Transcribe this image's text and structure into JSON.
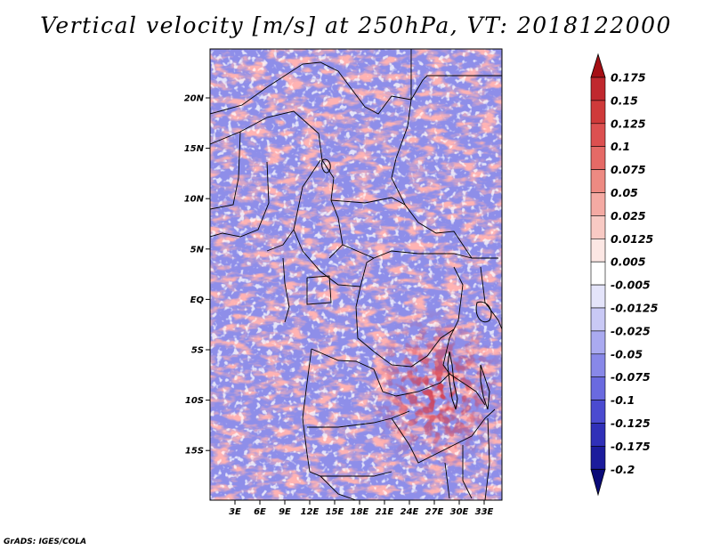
{
  "title": "Vertical velocity [m/s] at 250hPa, VT: 2018122000",
  "credit": "GrADS: IGES/COLA",
  "map": {
    "lon_range": [
      0,
      35
    ],
    "lat_range": [
      -20,
      24
    ],
    "lat_ticks": [
      {
        "value": 20,
        "label": "20N"
      },
      {
        "value": 15,
        "label": "15N"
      },
      {
        "value": 10,
        "label": "10N"
      },
      {
        "value": 5,
        "label": "5N"
      },
      {
        "value": 0,
        "label": "EQ"
      },
      {
        "value": -5,
        "label": "5S"
      },
      {
        "value": -10,
        "label": "10S"
      },
      {
        "value": -15,
        "label": "15S"
      }
    ],
    "lon_ticks": [
      {
        "value": 3,
        "label": "3E"
      },
      {
        "value": 6,
        "label": "6E"
      },
      {
        "value": 9,
        "label": "9E"
      },
      {
        "value": 12,
        "label": "12E"
      },
      {
        "value": 15,
        "label": "15E"
      },
      {
        "value": 18,
        "label": "18E"
      },
      {
        "value": 21,
        "label": "21E"
      },
      {
        "value": 24,
        "label": "24E"
      },
      {
        "value": 27,
        "label": "27E"
      },
      {
        "value": 30,
        "label": "30E"
      },
      {
        "value": 33,
        "label": "33E"
      }
    ]
  },
  "colorbar": {
    "labels": [
      "0.175",
      "0.15",
      "0.125",
      "0.1",
      "0.075",
      "0.05",
      "0.025",
      "0.0125",
      "0.005",
      "-0.005",
      "-0.0125",
      "-0.025",
      "-0.05",
      "-0.075",
      "-0.1",
      "-0.125",
      "-0.175",
      "-0.2"
    ],
    "colors": [
      "#a50f15",
      "#c0282e",
      "#cf3a3a",
      "#dc5050",
      "#e56a66",
      "#ed8a82",
      "#f4aaa3",
      "#f8cac4",
      "#fce7e4",
      "#ffffff",
      "#e4e4fa",
      "#c9c9f5",
      "#aaaaf0",
      "#8888e8",
      "#6a6adf",
      "#4b4bd0",
      "#3030b8",
      "#1c1c9c",
      "#0a0a78"
    ]
  }
}
